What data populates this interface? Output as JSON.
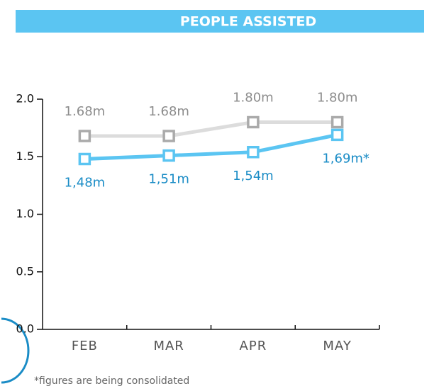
{
  "chart_data": {
    "type": "line",
    "title": "PEOPLE ASSISTED",
    "categories": [
      "FEB",
      "MAR",
      "APR",
      "MAY"
    ],
    "series": [
      {
        "color": "#dcdcdc",
        "marker_color": "#aaaaaa",
        "label_color": "#8c8c8c",
        "values": [
          1.68,
          1.68,
          1.8,
          1.8
        ],
        "value_labels": [
          "1.68m",
          "1.68m",
          "1.80m",
          "1.80m"
        ]
      },
      {
        "color": "#5bc5f2",
        "marker_color": "#5bc5f2",
        "label_color": "#1a8cc6",
        "values": [
          1.48,
          1.51,
          1.54,
          1.69
        ],
        "value_labels": [
          "1,48m",
          "1,51m",
          "1,54m",
          "1,69m*"
        ]
      }
    ],
    "ylim": [
      0,
      2
    ],
    "yticks": [
      {
        "value": 0,
        "label": "0.0"
      },
      0.5,
      {
        "value": 1,
        "label": "1.0"
      },
      1.5,
      {
        "value": 2,
        "label": "2.0"
      }
    ],
    "footnote": "*figures are being consolidated"
  }
}
